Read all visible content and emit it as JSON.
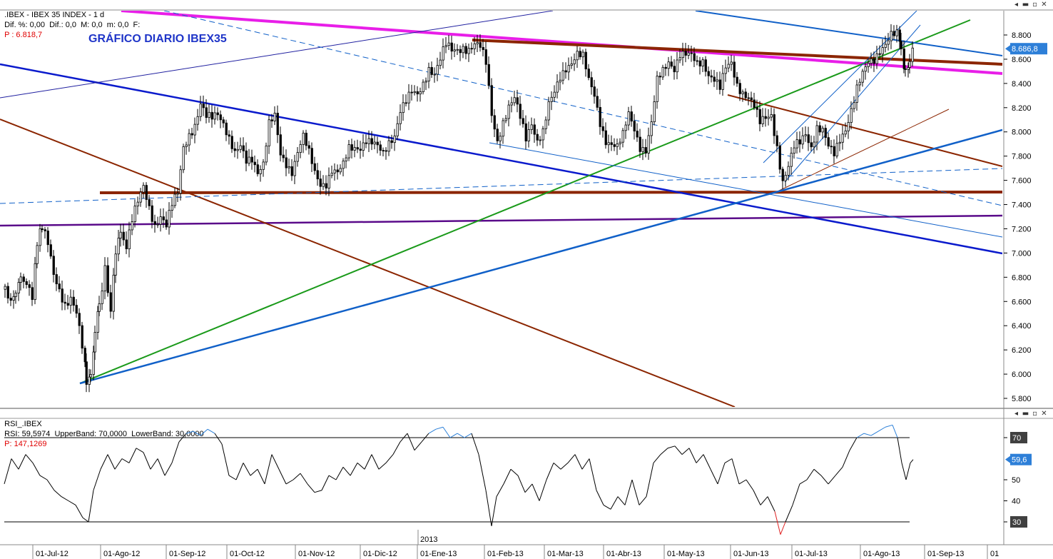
{
  "price_header": {
    "instrument": ".IBEX - IBEX 35 INDEX - 1 d",
    "stats": "Dif. %: 0,00  Dif.: 0,0  M: 0,0  m: 0,0  F:",
    "pointer": "P : 6.818,7"
  },
  "rsi_header": {
    "instrument": "RSI_.IBEX",
    "stats": "RSI: 59,5974  UpperBand: 70,0000  LowerBand: 30,0000",
    "pointer": "P: 147,1269"
  },
  "window_buttons": [
    "◂",
    "▬",
    "▫",
    "✕"
  ],
  "colors": {
    "magenta": "#e81ee8",
    "brown": "#8b2500",
    "green": "#1a9a1a",
    "blue": "#1060c8",
    "navy": "#0a1acc",
    "purple": "#5a0a8a",
    "price_badge": "#2d7fd8",
    "rsi_over": "#2a7fd8",
    "rsi_under": "#e02020"
  },
  "chart_data": [
    {
      "type": "candlestick",
      "title": "GRÁFICO DIARIO IBEX35",
      "ylim": [
        5700,
        9000
      ],
      "y_ticks": [
        "5.800",
        "6.000",
        "6.200",
        "6.400",
        "6.600",
        "6.800",
        "7.000",
        "7.200",
        "7.400",
        "7.600",
        "7.800",
        "8.000",
        "8.200",
        "8.400",
        "8.600",
        "8.800"
      ],
      "y_tick_values": [
        5800,
        6000,
        6200,
        6400,
        6600,
        6800,
        7000,
        7200,
        7400,
        7600,
        7800,
        8000,
        8200,
        8400,
        8600,
        8800
      ],
      "last_price_label": "8.686,8",
      "last_price": 8686.8,
      "x_labels": [
        "01-Jul-12",
        "01-Ago-12",
        "01-Sep-12",
        "01-Oct-12",
        "01-Nov-12",
        "01-Dic-12",
        "01-Ene-13",
        "01-Feb-13",
        "01-Mar-13",
        "01-Abr-13",
        "01-May-13",
        "01-Jun-13",
        "01-Jul-13",
        "01-Ago-13",
        "01-Sep-13",
        "01"
      ],
      "year_marker": "2013",
      "close_path": [
        [
          0,
          6700
        ],
        [
          8,
          6560
        ],
        [
          15,
          6640
        ],
        [
          22,
          6800
        ],
        [
          30,
          6720
        ],
        [
          38,
          6600
        ],
        [
          45,
          7050
        ],
        [
          52,
          7200
        ],
        [
          60,
          7050
        ],
        [
          68,
          6800
        ],
        [
          76,
          6700
        ],
        [
          84,
          6600
        ],
        [
          92,
          6650
        ],
        [
          100,
          6500
        ],
        [
          108,
          6200
        ],
        [
          114,
          5960
        ],
        [
          120,
          5980
        ],
        [
          126,
          6300
        ],
        [
          132,
          6600
        ],
        [
          140,
          6900
        ],
        [
          148,
          6500
        ],
        [
          155,
          7000
        ],
        [
          162,
          7200
        ],
        [
          170,
          7050
        ],
        [
          178,
          7250
        ],
        [
          186,
          7400
        ],
        [
          194,
          7550
        ],
        [
          202,
          7400
        ],
        [
          210,
          7250
        ],
        [
          218,
          7300
        ],
        [
          226,
          7200
        ],
        [
          234,
          7380
        ],
        [
          242,
          7500
        ],
        [
          250,
          7900
        ],
        [
          258,
          8000
        ],
        [
          266,
          8050
        ],
        [
          274,
          8200
        ],
        [
          282,
          8100
        ],
        [
          290,
          8120
        ],
        [
          298,
          8180
        ],
        [
          306,
          8100
        ],
        [
          314,
          7950
        ],
        [
          322,
          7800
        ],
        [
          330,
          7850
        ],
        [
          338,
          7750
        ],
        [
          346,
          7800
        ],
        [
          354,
          7700
        ],
        [
          362,
          7750
        ],
        [
          370,
          8050
        ],
        [
          378,
          8100
        ],
        [
          386,
          7800
        ],
        [
          394,
          7750
        ],
        [
          402,
          7700
        ],
        [
          410,
          7850
        ],
        [
          418,
          7950
        ],
        [
          426,
          7800
        ],
        [
          434,
          7650
        ],
        [
          442,
          7580
        ],
        [
          450,
          7600
        ],
        [
          458,
          7700
        ],
        [
          466,
          7650
        ],
        [
          474,
          7700
        ],
        [
          482,
          7850
        ],
        [
          490,
          7880
        ],
        [
          498,
          7900
        ],
        [
          506,
          7950
        ],
        [
          514,
          7900
        ],
        [
          522,
          7850
        ],
        [
          530,
          7800
        ],
        [
          538,
          7920
        ],
        [
          546,
          8000
        ],
        [
          554,
          8200
        ],
        [
          562,
          8250
        ],
        [
          570,
          8300
        ],
        [
          578,
          8280
        ],
        [
          586,
          8400
        ],
        [
          594,
          8550
        ],
        [
          602,
          8500
        ],
        [
          610,
          8600
        ],
        [
          618,
          8700
        ],
        [
          626,
          8650
        ],
        [
          634,
          8680
        ],
        [
          642,
          8720
        ],
        [
          650,
          8700
        ],
        [
          658,
          8720
        ],
        [
          666,
          8680
        ],
        [
          674,
          8550
        ],
        [
          682,
          8150
        ],
        [
          690,
          7950
        ],
        [
          698,
          8100
        ],
        [
          706,
          8200
        ],
        [
          714,
          8250
        ],
        [
          722,
          8100
        ],
        [
          730,
          7950
        ],
        [
          738,
          8100
        ],
        [
          746,
          7950
        ],
        [
          754,
          8000
        ],
        [
          762,
          8200
        ],
        [
          770,
          8300
        ],
        [
          778,
          8450
        ],
        [
          786,
          8550
        ],
        [
          794,
          8600
        ],
        [
          802,
          8650
        ],
        [
          810,
          8600
        ],
        [
          818,
          8400
        ],
        [
          826,
          8300
        ],
        [
          834,
          8100
        ],
        [
          842,
          7950
        ],
        [
          850,
          7900
        ],
        [
          858,
          7850
        ],
        [
          866,
          7950
        ],
        [
          874,
          8150
        ],
        [
          882,
          8050
        ],
        [
          890,
          7900
        ],
        [
          898,
          7850
        ],
        [
          906,
          8050
        ],
        [
          914,
          8400
        ],
        [
          922,
          8500
        ],
        [
          930,
          8600
        ],
        [
          938,
          8550
        ],
        [
          946,
          8650
        ],
        [
          954,
          8620
        ],
        [
          962,
          8600
        ],
        [
          970,
          8550
        ],
        [
          978,
          8600
        ],
        [
          986,
          8500
        ],
        [
          994,
          8450
        ],
        [
          1002,
          8350
        ],
        [
          1010,
          8500
        ],
        [
          1018,
          8550
        ],
        [
          1026,
          8400
        ],
        [
          1034,
          8350
        ],
        [
          1042,
          8300
        ],
        [
          1050,
          8200
        ],
        [
          1058,
          8050
        ],
        [
          1066,
          8100
        ],
        [
          1074,
          8150
        ],
        [
          1082,
          7900
        ],
        [
          1090,
          7600
        ],
        [
          1098,
          7700
        ],
        [
          1106,
          7850
        ],
        [
          1114,
          7900
        ],
        [
          1122,
          8000
        ],
        [
          1130,
          7900
        ],
        [
          1138,
          8050
        ],
        [
          1146,
          8000
        ],
        [
          1154,
          7850
        ],
        [
          1162,
          7800
        ],
        [
          1170,
          7950
        ],
        [
          1178,
          8050
        ],
        [
          1186,
          8200
        ],
        [
          1194,
          8350
        ],
        [
          1202,
          8450
        ],
        [
          1210,
          8550
        ],
        [
          1218,
          8600
        ],
        [
          1226,
          8700
        ],
        [
          1234,
          8750
        ],
        [
          1242,
          8800
        ],
        [
          1250,
          8780
        ],
        [
          1256,
          8700
        ],
        [
          1262,
          8500
        ],
        [
          1268,
          8580
        ],
        [
          1274,
          8686.8
        ]
      ]
    },
    {
      "type": "line",
      "title": "RSI",
      "ylim": [
        20,
        85
      ],
      "y_ticks": [
        "70",
        "50",
        "40",
        "30"
      ],
      "y_tick_values": [
        70,
        50,
        40,
        30
      ],
      "upper_band": 70,
      "lower_band": 30,
      "last_value_label": "59,6",
      "last_value": 59.6,
      "values": [
        [
          0,
          48
        ],
        [
          10,
          60
        ],
        [
          20,
          55
        ],
        [
          30,
          62
        ],
        [
          40,
          58
        ],
        [
          50,
          52
        ],
        [
          60,
          50
        ],
        [
          70,
          45
        ],
        [
          80,
          42
        ],
        [
          90,
          40
        ],
        [
          100,
          38
        ],
        [
          110,
          32
        ],
        [
          118,
          30
        ],
        [
          125,
          45
        ],
        [
          135,
          55
        ],
        [
          145,
          62
        ],
        [
          155,
          55
        ],
        [
          165,
          60
        ],
        [
          175,
          58
        ],
        [
          185,
          65
        ],
        [
          195,
          63
        ],
        [
          205,
          55
        ],
        [
          215,
          60
        ],
        [
          225,
          52
        ],
        [
          235,
          58
        ],
        [
          245,
          68
        ],
        [
          255,
          72
        ],
        [
          265,
          73
        ],
        [
          275,
          71
        ],
        [
          285,
          74
        ],
        [
          295,
          72
        ],
        [
          305,
          67
        ],
        [
          315,
          52
        ],
        [
          325,
          50
        ],
        [
          335,
          58
        ],
        [
          345,
          52
        ],
        [
          355,
          55
        ],
        [
          365,
          48
        ],
        [
          375,
          62
        ],
        [
          385,
          55
        ],
        [
          395,
          48
        ],
        [
          405,
          50
        ],
        [
          415,
          53
        ],
        [
          425,
          48
        ],
        [
          435,
          44
        ],
        [
          445,
          45
        ],
        [
          455,
          52
        ],
        [
          465,
          50
        ],
        [
          475,
          56
        ],
        [
          485,
          52
        ],
        [
          495,
          58
        ],
        [
          505,
          55
        ],
        [
          515,
          62
        ],
        [
          525,
          55
        ],
        [
          535,
          58
        ],
        [
          545,
          62
        ],
        [
          555,
          68
        ],
        [
          565,
          72
        ],
        [
          575,
          64
        ],
        [
          585,
          68
        ],
        [
          595,
          72
        ],
        [
          605,
          74
        ],
        [
          615,
          75
        ],
        [
          625,
          70
        ],
        [
          635,
          72
        ],
        [
          645,
          70
        ],
        [
          655,
          72
        ],
        [
          665,
          62
        ],
        [
          675,
          45
        ],
        [
          683,
          28
        ],
        [
          690,
          42
        ],
        [
          700,
          48
        ],
        [
          710,
          55
        ],
        [
          720,
          52
        ],
        [
          730,
          44
        ],
        [
          740,
          48
        ],
        [
          750,
          40
        ],
        [
          760,
          50
        ],
        [
          770,
          58
        ],
        [
          780,
          55
        ],
        [
          790,
          58
        ],
        [
          800,
          62
        ],
        [
          810,
          55
        ],
        [
          820,
          60
        ],
        [
          830,
          45
        ],
        [
          840,
          38
        ],
        [
          850,
          36
        ],
        [
          860,
          42
        ],
        [
          870,
          38
        ],
        [
          880,
          50
        ],
        [
          890,
          38
        ],
        [
          900,
          42
        ],
        [
          910,
          58
        ],
        [
          920,
          62
        ],
        [
          930,
          65
        ],
        [
          940,
          66
        ],
        [
          950,
          62
        ],
        [
          960,
          65
        ],
        [
          970,
          58
        ],
        [
          980,
          62
        ],
        [
          990,
          55
        ],
        [
          1000,
          48
        ],
        [
          1010,
          58
        ],
        [
          1020,
          60
        ],
        [
          1030,
          48
        ],
        [
          1040,
          50
        ],
        [
          1050,
          45
        ],
        [
          1060,
          38
        ],
        [
          1070,
          42
        ],
        [
          1080,
          35
        ],
        [
          1088,
          24
        ],
        [
          1095,
          30
        ],
        [
          1105,
          38
        ],
        [
          1115,
          48
        ],
        [
          1125,
          50
        ],
        [
          1135,
          55
        ],
        [
          1145,
          52
        ],
        [
          1155,
          48
        ],
        [
          1165,
          52
        ],
        [
          1175,
          56
        ],
        [
          1185,
          64
        ],
        [
          1195,
          70
        ],
        [
          1205,
          72
        ],
        [
          1215,
          71
        ],
        [
          1225,
          73
        ],
        [
          1235,
          75
        ],
        [
          1245,
          76
        ],
        [
          1252,
          70
        ],
        [
          1258,
          58
        ],
        [
          1264,
          50
        ],
        [
          1270,
          58
        ],
        [
          1274,
          59.6
        ]
      ]
    }
  ]
}
